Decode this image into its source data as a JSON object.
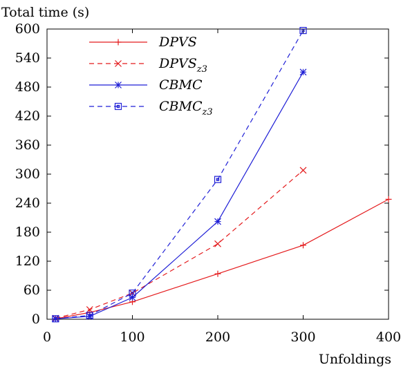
{
  "chart_data": {
    "type": "line",
    "ylabel": "Total time (s)",
    "xlabel": "Unfoldings",
    "xlim": [
      0,
      400
    ],
    "ylim": [
      0,
      600
    ],
    "xticks": [
      0,
      100,
      200,
      300,
      400
    ],
    "yticks": [
      0,
      60,
      120,
      180,
      240,
      300,
      360,
      420,
      480,
      540,
      600
    ],
    "grid": false,
    "legend_position": "top-left",
    "series": [
      {
        "name": "DPVS",
        "name_base": "DPVS",
        "name_sub": "",
        "color": "#e41a1c",
        "dash": "solid",
        "marker": "plus",
        "x": [
          10,
          50,
          100,
          200,
          300,
          400
        ],
        "y": [
          1,
          14,
          36,
          94,
          153,
          248
        ]
      },
      {
        "name": "DPVSz3",
        "name_base": "DPVS",
        "name_sub": "z3",
        "color": "#e41a1c",
        "dash": "dashed",
        "marker": "cross",
        "x": [
          10,
          50,
          100,
          200,
          300
        ],
        "y": [
          2,
          20,
          54,
          156,
          308
        ]
      },
      {
        "name": "CBMC",
        "name_base": "CBMC",
        "name_sub": "",
        "color": "#1f1fd6",
        "dash": "solid",
        "marker": "star",
        "x": [
          10,
          50,
          100,
          200,
          300
        ],
        "y": [
          1,
          6,
          45,
          202,
          511
        ]
      },
      {
        "name": "CBMCz3",
        "name_base": "CBMC",
        "name_sub": "z3",
        "color": "#1f1fd6",
        "dash": "dashed",
        "marker": "square",
        "x": [
          10,
          50,
          100,
          200,
          300
        ],
        "y": [
          1,
          8,
          54,
          289,
          597
        ]
      }
    ]
  }
}
